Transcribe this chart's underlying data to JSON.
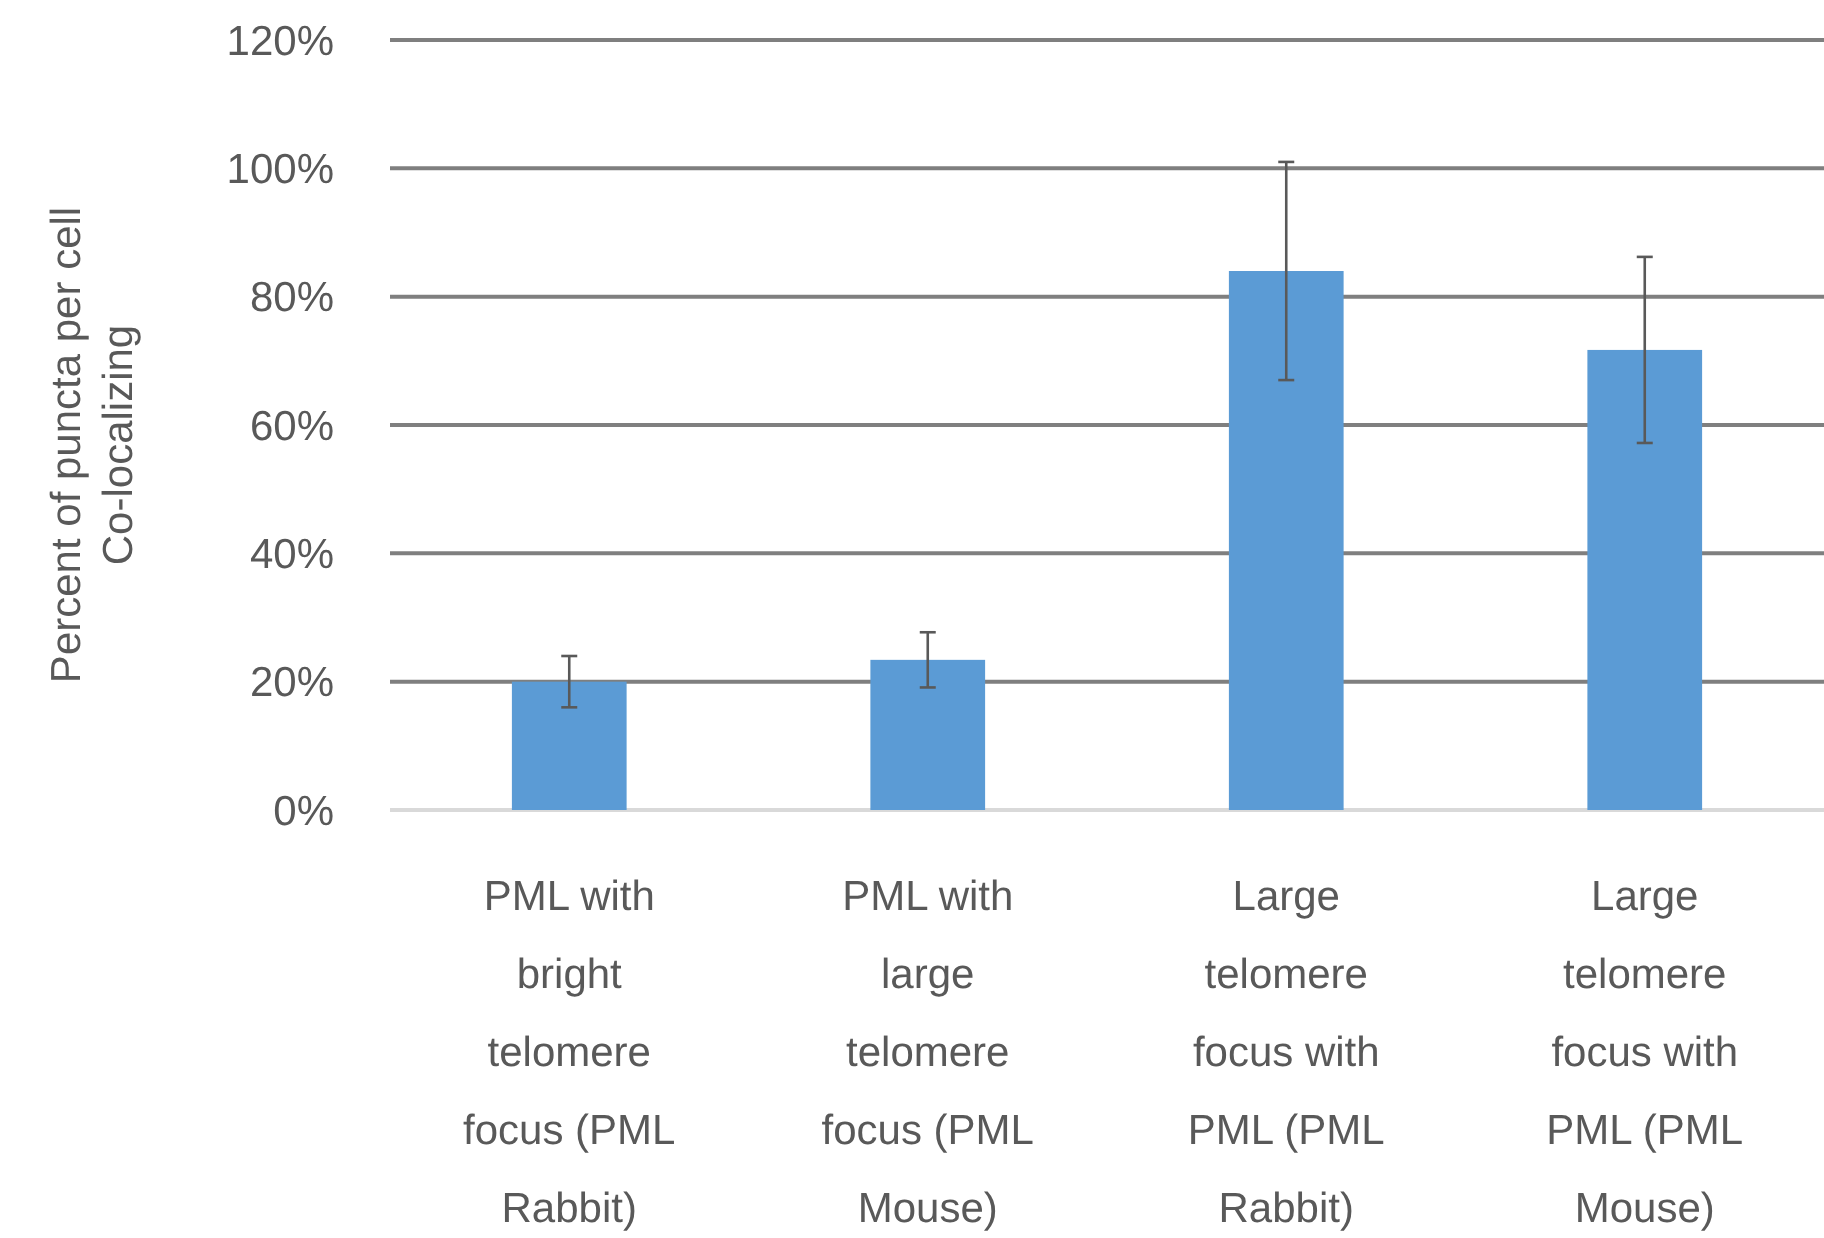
{
  "chart_data": {
    "type": "bar",
    "ylabel": "Percent of puncta per cell\nCo-localizing",
    "categories": [
      "PML with bright telomere focus (PML Rabbit)",
      "PML with large telomere focus (PML Mouse)",
      "Large telomere focus with PML (PML Rabbit)",
      "Large telomere focus with PML (PML Mouse)"
    ],
    "values": [
      20,
      23.4,
      84,
      71.7
    ],
    "errors": [
      4,
      4.3,
      17,
      14.5
    ],
    "color": "#5b9bd5",
    "ylim": [
      0,
      120
    ],
    "yticks": [
      {
        "value": 0,
        "label": "0%"
      },
      {
        "value": 20,
        "label": "20%"
      },
      {
        "value": 40,
        "label": "40%"
      },
      {
        "value": 60,
        "label": "60%"
      },
      {
        "value": 80,
        "label": "80%"
      },
      {
        "value": 100,
        "label": "100%"
      },
      {
        "value": 120,
        "label": "120%"
      }
    ],
    "grid": "y"
  }
}
